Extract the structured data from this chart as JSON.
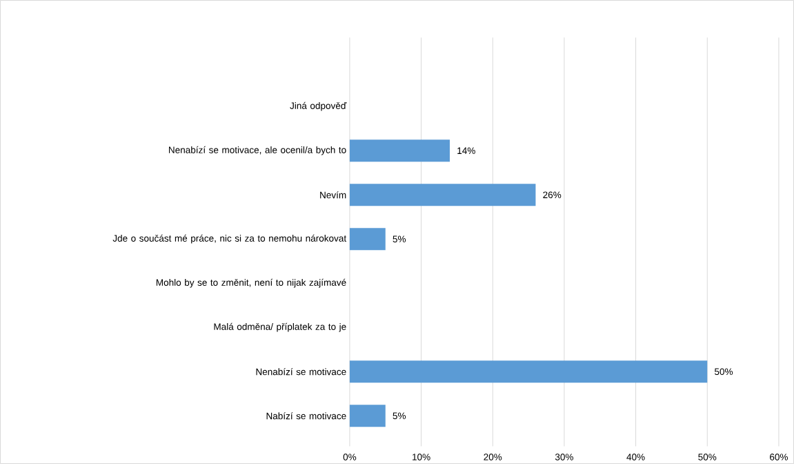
{
  "chart_data": {
    "type": "bar",
    "orientation": "horizontal",
    "categories": [
      "Jiná odpověď",
      "Nenabízí se motivace, ale ocenil/a bych to",
      "Nevím",
      "Jde o součást mé práce, nic si za to nemohu nárokovat",
      "Mohlo by se to změnit, není to nijak zajímavé",
      "Malá odměna/ příplatek za to je",
      "Nenabízí se motivace",
      "Nabízí se motivace"
    ],
    "values": [
      0,
      14,
      26,
      5,
      0,
      0,
      50,
      5
    ],
    "value_labels": [
      null,
      "14%",
      "26%",
      "5%",
      null,
      null,
      "50%",
      "5%"
    ],
    "color": "#5b9bd5",
    "xlim": [
      0,
      60
    ],
    "xticks": [
      {
        "value": 0,
        "label": "0%"
      },
      {
        "value": 10,
        "label": "10%"
      },
      {
        "value": 20,
        "label": "20%"
      },
      {
        "value": 30,
        "label": "30%"
      },
      {
        "value": 40,
        "label": "40%"
      },
      {
        "value": 50,
        "label": "50%"
      },
      {
        "value": 60,
        "label": "60%"
      }
    ],
    "grid": "x"
  }
}
